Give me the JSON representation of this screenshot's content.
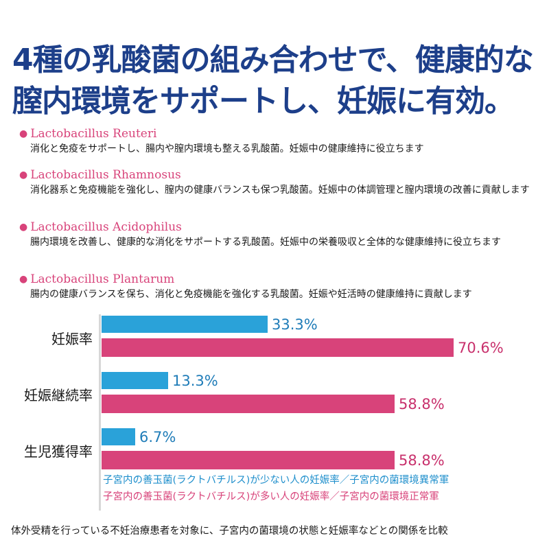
{
  "headline": {
    "line1": "4種の乳酸菌の組み合わせで、健康的な",
    "line2": "膣内環境をサポートし、妊娠に有効。"
  },
  "bullet_symbol": "●",
  "bacteria": [
    {
      "name": "Lactobacillus Reuteri",
      "desc": "消化と免疫をサポートし、腸内や膣内環境も整える乳酸菌。妊娠中の健康維持に役立ちます"
    },
    {
      "name": "Lactobacillus Rhamnosus",
      "desc": "消化器系と免疫機能を強化し、膣内の健康バランスも保つ乳酸菌。妊娠中の体調管理と膣内環境の改善に貢献します"
    },
    {
      "name": "Lactobacillus Acidophilus",
      "desc": "腸内環境を改善し、健康的な消化をサポートする乳酸菌。妊娠中の栄養吸収と全体的な健康維持に役立ちます"
    },
    {
      "name": "Lactobacillus Plantarum",
      "desc": "腸内の健康バランスを保ち、消化と免疫機能を強化する乳酸菌。妊娠や妊活時の健康維持に貢献します"
    }
  ],
  "chart_data": {
    "type": "bar",
    "orientation": "horizontal",
    "categories": [
      "妊娠率",
      "妊娠継続率",
      "生児獲得率"
    ],
    "series": [
      {
        "name": "子宮内の善玉菌（ラクトバチルス）が少ない人の妊娠率／子宮内の菌環境異常軍",
        "color": "#2aa2d9",
        "values": [
          33.3,
          13.3,
          6.7
        ],
        "labels": [
          "33.3%",
          "13.3%",
          "6.7%"
        ]
      },
      {
        "name": "子宮内の善玉菌（ラクトバチルス）が多い人の妊娠率／子宮内の菌環境正常軍",
        "color": "#d8437a",
        "values": [
          70.6,
          58.8,
          58.8
        ],
        "labels": [
          "70.6%",
          "58.8%",
          "58.8%"
        ]
      }
    ],
    "unit": "%",
    "xlim": [
      0,
      100
    ],
    "legend": {
      "line1": "子宮内の善玉菌(ラクトバチルス)が少ない人の妊娠率／子宮内の菌環境異常軍",
      "line2": "子宮内の善玉菌(ラクトバチルス)が多い人の妊娠率／子宮内の菌環境正常軍"
    }
  },
  "footnote": "体外受精を行っている不妊治療患者を対象に、子宮内の菌環境の状態と妊娠率などとの関係を比較"
}
